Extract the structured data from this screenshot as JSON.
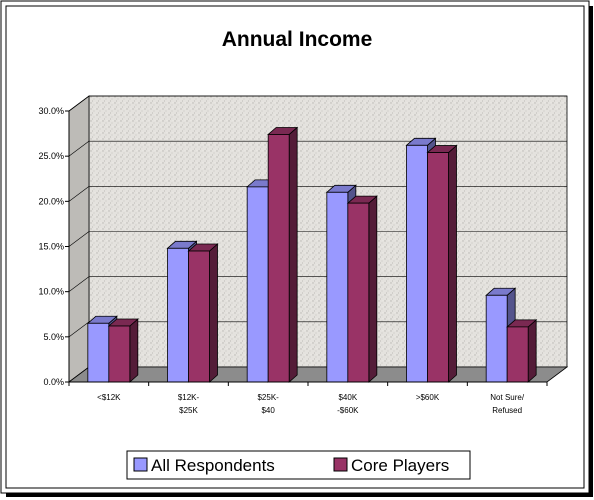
{
  "chart_data": {
    "type": "bar",
    "title": "Annual Income",
    "categories": [
      [
        "<$12K"
      ],
      [
        "$12K-",
        "$25K"
      ],
      [
        "$25K-",
        "$40"
      ],
      [
        "$40K",
        "-$60K"
      ],
      [
        ">$60K"
      ],
      [
        "Not Sure/",
        "Refused"
      ]
    ],
    "series": [
      {
        "name": "All Respondents",
        "color": "#9999ff",
        "values": [
          6.5,
          14.8,
          21.6,
          21.0,
          26.2,
          9.6
        ]
      },
      {
        "name": "Core Players",
        "color": "#993366",
        "values": [
          6.2,
          14.5,
          27.4,
          19.8,
          25.4,
          6.1
        ]
      }
    ],
    "yticks": [
      "0.0%",
      "5.0%",
      "10.0%",
      "15.0%",
      "20.0%",
      "25.0%",
      "30.0%"
    ],
    "ylim": [
      0,
      30
    ],
    "grid": true,
    "legend_position": "bottom",
    "colors": {
      "wall": "#e2e0dc",
      "floor": "#8c8c8c",
      "frame": "#000000"
    }
  }
}
